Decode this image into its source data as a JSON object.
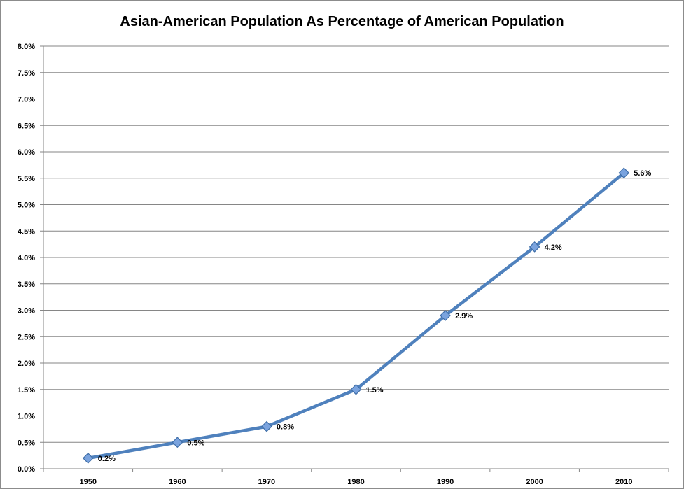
{
  "chart_data": {
    "type": "line",
    "title": "Asian-American Population As Percentage of American Population",
    "xlabel": "",
    "ylabel": "",
    "categories": [
      "1950",
      "1960",
      "1970",
      "1980",
      "1990",
      "2000",
      "2010"
    ],
    "series": [
      {
        "values": [
          0.2,
          0.5,
          0.8,
          1.5,
          2.9,
          4.2,
          5.6
        ],
        "data_labels": [
          "0.2%",
          "0.5%",
          "0.8%",
          "1.5%",
          "2.9%",
          "4.2%",
          "5.6%"
        ],
        "color": "#4f81bd"
      }
    ],
    "ylim": [
      0,
      8
    ],
    "y_ticks": [
      "0.0%",
      "0.5%",
      "1.0%",
      "1.5%",
      "2.0%",
      "2.5%",
      "3.0%",
      "3.5%",
      "4.0%",
      "4.5%",
      "5.0%",
      "5.5%",
      "6.0%",
      "6.5%",
      "7.0%",
      "7.5%",
      "8.0%"
    ],
    "grid": true,
    "legend": "none",
    "marker": "diamond",
    "colors": {
      "line": "#4f81bd",
      "marker_fill": "#7aa3de",
      "marker_stroke": "#3f6ea8",
      "grid": "#868686",
      "axis": "#868686"
    }
  }
}
